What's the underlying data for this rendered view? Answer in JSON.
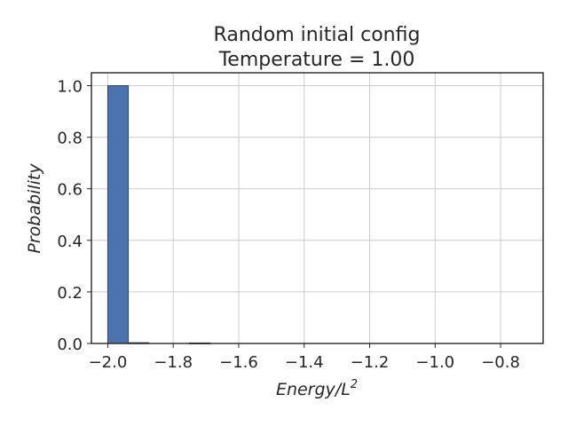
{
  "chart_data": {
    "type": "bar",
    "title": [
      "Random initial config",
      "Temperature = 1.00"
    ],
    "xlabel": "Energy/L",
    "xlabel_superscript": "2",
    "ylabel": "Probability",
    "xlim": [
      -2.05,
      -0.67
    ],
    "ylim": [
      0,
      1.05
    ],
    "xticks": [
      -2.0,
      -1.8,
      -1.6,
      -1.4,
      -1.2,
      -1.0,
      -0.8
    ],
    "xtick_labels": [
      "−2.0",
      "−1.8",
      "−1.6",
      "−1.4",
      "−1.2",
      "−1.0",
      "−0.8"
    ],
    "yticks": [
      0.0,
      0.2,
      0.4,
      0.6,
      0.8,
      1.0
    ],
    "ytick_labels": [
      "0.0",
      "0.2",
      "0.4",
      "0.6",
      "0.8",
      "1.0"
    ],
    "grid": true,
    "bin_width": 0.0625,
    "bins": [
      {
        "x_start": -2.0,
        "value": 1.0
      },
      {
        "x_start": -1.9375,
        "value": 0.003
      },
      {
        "x_start": -1.75,
        "value": 0.002
      }
    ],
    "colors": {
      "bar": "#4c72b0",
      "bar_edge": "#2d4469",
      "grid": "#cccccc",
      "text": "#262626"
    }
  }
}
